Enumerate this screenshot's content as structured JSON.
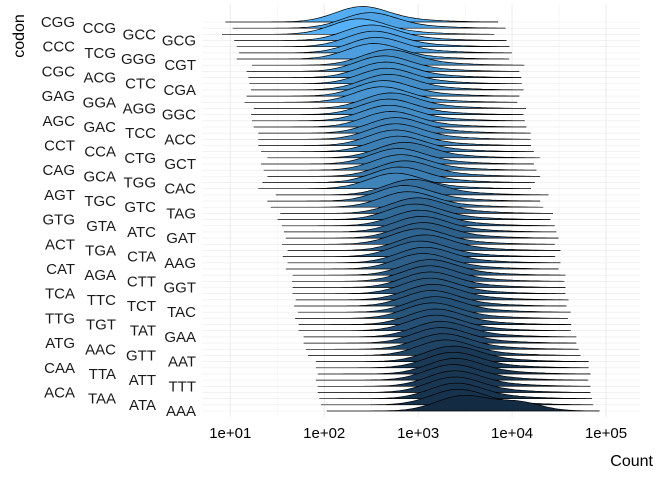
{
  "chart_data": {
    "type": "ridgeline",
    "xlabel": "Count",
    "ylabel": "codon",
    "x_scale": "log10",
    "xlim": [
      5,
      230000
    ],
    "x_ticks": [
      10,
      100,
      1000,
      10000,
      100000
    ],
    "x_tick_labels": [
      "1e+01",
      "1e+02",
      "1e+03",
      "1e+04",
      "1e+05"
    ],
    "grid": true,
    "fill_color_low": "#56B1F7",
    "fill_color_high": "#132B43",
    "outline_color": "#000000",
    "codons": [
      "CGG",
      "CCG",
      "GCC",
      "GCG",
      "CCC",
      "TCG",
      "GGG",
      "CGT",
      "CGC",
      "ACG",
      "CTC",
      "CGA",
      "GAG",
      "GGA",
      "AGG",
      "GGC",
      "AGC",
      "GAC",
      "TCC",
      "ACC",
      "CCT",
      "CCA",
      "CTG",
      "GCT",
      "CAG",
      "GCA",
      "TGG",
      "CAC",
      "AGT",
      "TGC",
      "GTC",
      "TAG",
      "GTG",
      "GTA",
      "ATC",
      "GAT",
      "ACT",
      "TGA",
      "CTA",
      "AAG",
      "CAT",
      "AGA",
      "CTT",
      "GGT",
      "TCA",
      "TTC",
      "TCT",
      "TAC",
      "TTG",
      "TGT",
      "TAT",
      "GAA",
      "ATG",
      "AAC",
      "GTT",
      "AAT",
      "CAA",
      "TTA",
      "ATT",
      "TTT",
      "ACA",
      "TAA",
      "ATA",
      "AAA"
    ],
    "peak_counts": [
      250,
      300,
      230,
      310,
      330,
      350,
      330,
      480,
      420,
      440,
      450,
      470,
      420,
      400,
      500,
      470,
      480,
      500,
      560,
      560,
      560,
      600,
      700,
      600,
      640,
      700,
      620,
      560,
      860,
      700,
      760,
      960,
      900,
      1000,
      1050,
      1100,
      1000,
      1150,
      1020,
      1150,
      1100,
      1300,
      1280,
      1300,
      1300,
      1400,
      1350,
      1480,
      1380,
      1500,
      1500,
      1700,
      1700,
      1800,
      1900,
      2300,
      2300,
      2400,
      2300,
      2400,
      2400,
      2500,
      2600,
      3000
    ],
    "secondary_peak": {
      "codon": "AAA",
      "count": 12000
    }
  }
}
